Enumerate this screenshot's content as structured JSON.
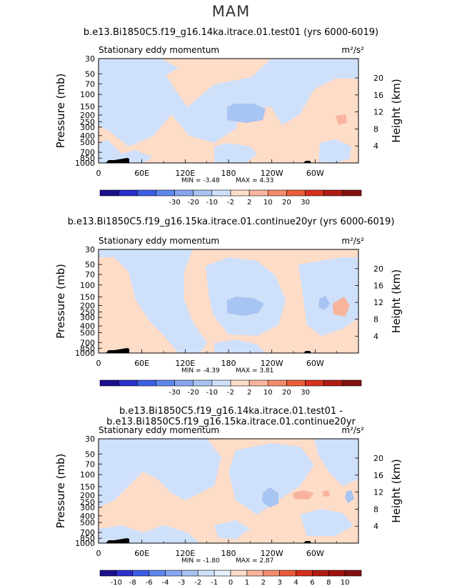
{
  "page": {
    "title": "MAM"
  },
  "colors": {
    "blue_light": "#cfe0fa",
    "blue_mid": "#a8c4f2",
    "orange_light": "#fddcc8",
    "orange_mid": "#f8b49c",
    "terrain": "#000000"
  },
  "axes": {
    "pressure_ticks": [
      "30",
      "50",
      "70",
      "100",
      "150",
      "200",
      "250",
      "300",
      "400",
      "500",
      "700",
      "850",
      "1000"
    ],
    "height_ticks": [
      "20",
      "16",
      "12",
      "8",
      "4"
    ],
    "x_ticks": [
      "0",
      "60E",
      "120E",
      "180",
      "120W",
      "60W"
    ],
    "ylabel_left": "Pressure (mb)",
    "ylabel_right": "Height (km)"
  },
  "chart_data": [
    {
      "type": "heatmap",
      "title": "b.e13.Bi1850C5.f19_g16.14ka.itrace.01.test01 (yrs 6000-6019)",
      "subtitle": "Stationary eddy momentum",
      "units": "m²/s²",
      "min_text": "MIN =    -3.48",
      "max_text": "MAX =     4.33",
      "colorbar_labels": [
        "-30",
        "-20",
        "-10",
        "-2",
        "2",
        "10",
        "20",
        "30"
      ],
      "colorbar_colors": [
        "#1a0f8c",
        "#2a2ec8",
        "#3c5ee6",
        "#5e86ec",
        "#86a6f0",
        "#a8c4f2",
        "#cfe0fa",
        "#fddcc8",
        "#f8b49c",
        "#f48c6c",
        "#ec5c3a",
        "#d6301e",
        "#b21a14",
        "#841010"
      ],
      "xlim": [
        0,
        360
      ],
      "pressure_range_mb": [
        30,
        1000
      ]
    },
    {
      "type": "heatmap",
      "title": "b.e13.Bi1850C5.f19_g16.15ka.itrace.01.continue20yr (yrs 6000-6019)",
      "subtitle": "Stationary eddy momentum",
      "units": "m²/s²",
      "min_text": "MIN =    -4.39",
      "max_text": "MAX =     3.81",
      "colorbar_labels": [
        "-30",
        "-20",
        "-10",
        "-2",
        "2",
        "10",
        "20",
        "30"
      ],
      "colorbar_colors": [
        "#1a0f8c",
        "#2a2ec8",
        "#3c5ee6",
        "#5e86ec",
        "#86a6f0",
        "#a8c4f2",
        "#cfe0fa",
        "#fddcc8",
        "#f8b49c",
        "#f48c6c",
        "#ec5c3a",
        "#d6301e",
        "#b21a14",
        "#841010"
      ],
      "xlim": [
        0,
        360
      ],
      "pressure_range_mb": [
        30,
        1000
      ]
    },
    {
      "type": "heatmap",
      "title": "b.e13.Bi1850C5.f19_g16.14ka.itrace.01.test01 - b.e13.Bi1850C5.f19_g16.15ka.itrace.01.continue20yr",
      "subtitle": "Stationary eddy momentum",
      "units": "m²/s²",
      "min_text": "MIN =    -1.80",
      "max_text": "MAX =     2.87",
      "colorbar_labels": [
        "-10",
        "-8",
        "-6",
        "-4",
        "-3",
        "-2",
        "-1",
        "0",
        "1",
        "2",
        "3",
        "4",
        "6",
        "8",
        "10"
      ],
      "colorbar_colors": [
        "#1a0f8c",
        "#2a2ec8",
        "#3c5ee6",
        "#5e86ec",
        "#86a6f0",
        "#a8c4f2",
        "#cfe0fa",
        "#e6effc",
        "#fddcc8",
        "#f8b49c",
        "#f48c6c",
        "#ec5c3a",
        "#d6301e",
        "#b21a14",
        "#a01410",
        "#841010"
      ],
      "xlim": [
        0,
        360
      ],
      "pressure_range_mb": [
        30,
        1000
      ]
    }
  ]
}
